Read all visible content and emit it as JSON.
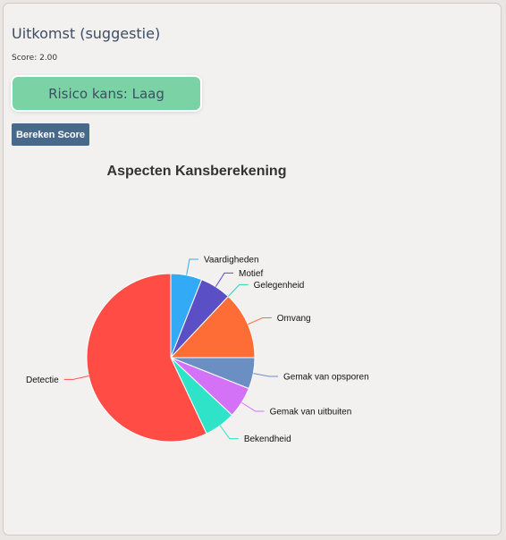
{
  "outcome": {
    "title": "Uitkomst (suggestie)",
    "score_text": "Score: 2.00",
    "risk_text": "Risico kans: Laag"
  },
  "actions": {
    "calculate_label": "Bereken Score"
  },
  "colors": {
    "risk_badge": "#7bd3a5",
    "button": "#476a8c"
  },
  "chart_data": {
    "type": "pie",
    "title": "Aspecten Kansberekening",
    "categories": [
      "Vaardigheden",
      "Motief",
      "Gelegenheid",
      "Omvang",
      "Gemak van opsporen",
      "Gemak van uitbuiten",
      "Bekendheid",
      "Detectie"
    ],
    "values": [
      6,
      6,
      0,
      13,
      6,
      6,
      6,
      57
    ],
    "colors": [
      "#33aaf5",
      "#5a4fc4",
      "#2bd5b4",
      "#fe6d35",
      "#6b8fc2",
      "#d472f7",
      "#2fe3c8",
      "#ff4d45"
    ]
  }
}
